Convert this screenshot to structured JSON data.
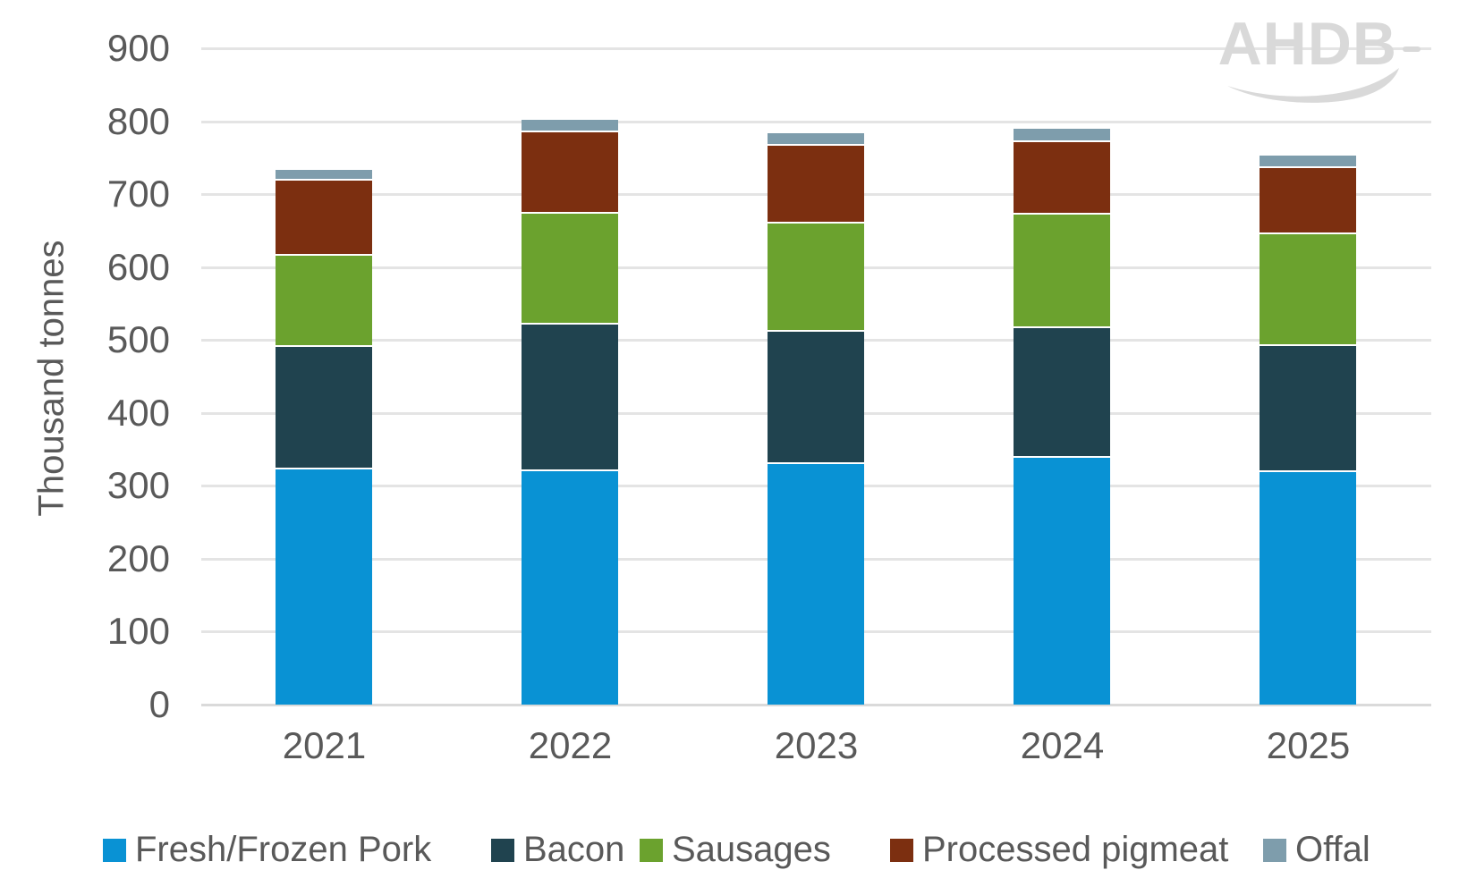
{
  "chart_data": {
    "type": "bar",
    "stacked": true,
    "title": "",
    "xlabel": "",
    "ylabel": "Thousand tonnes",
    "ylim": [
      0,
      900
    ],
    "ytick_step": 100,
    "yticks": [
      0,
      100,
      200,
      300,
      400,
      500,
      600,
      700,
      800,
      900
    ],
    "grid": "horizontal",
    "legend_position": "bottom",
    "categories": [
      "2021",
      "2022",
      "2023",
      "2024",
      "2025"
    ],
    "series": [
      {
        "name": "Fresh/Frozen Pork",
        "color": "#0992d4",
        "values": [
          322,
          320,
          330,
          338,
          319
        ]
      },
      {
        "name": "Bacon",
        "color": "#20434f",
        "values": [
          169,
          201,
          181,
          178,
          173
        ]
      },
      {
        "name": "Sausages",
        "color": "#6ba22e",
        "values": [
          124,
          152,
          149,
          156,
          153
        ]
      },
      {
        "name": "Processed pigmeat",
        "color": "#7c2f10",
        "values": [
          104,
          112,
          106,
          99,
          91
        ]
      },
      {
        "name": "Offal",
        "color": "#7e9dac",
        "values": [
          14,
          17,
          17,
          19,
          17
        ]
      }
    ],
    "totals": [
      733,
      802,
      783,
      790,
      753
    ]
  },
  "branding": {
    "logo_text": "AHDB"
  },
  "colors": {
    "background": "#ffffff",
    "axis_text": "#595959",
    "gridline": "#e4e4e4",
    "baseline": "#dadada",
    "segment_separator": "#ffffff",
    "logo": "#d9d9d9"
  },
  "layout_hints": {
    "legend_item_lefts": [
      115,
      549,
      715,
      995,
      1412
    ]
  }
}
